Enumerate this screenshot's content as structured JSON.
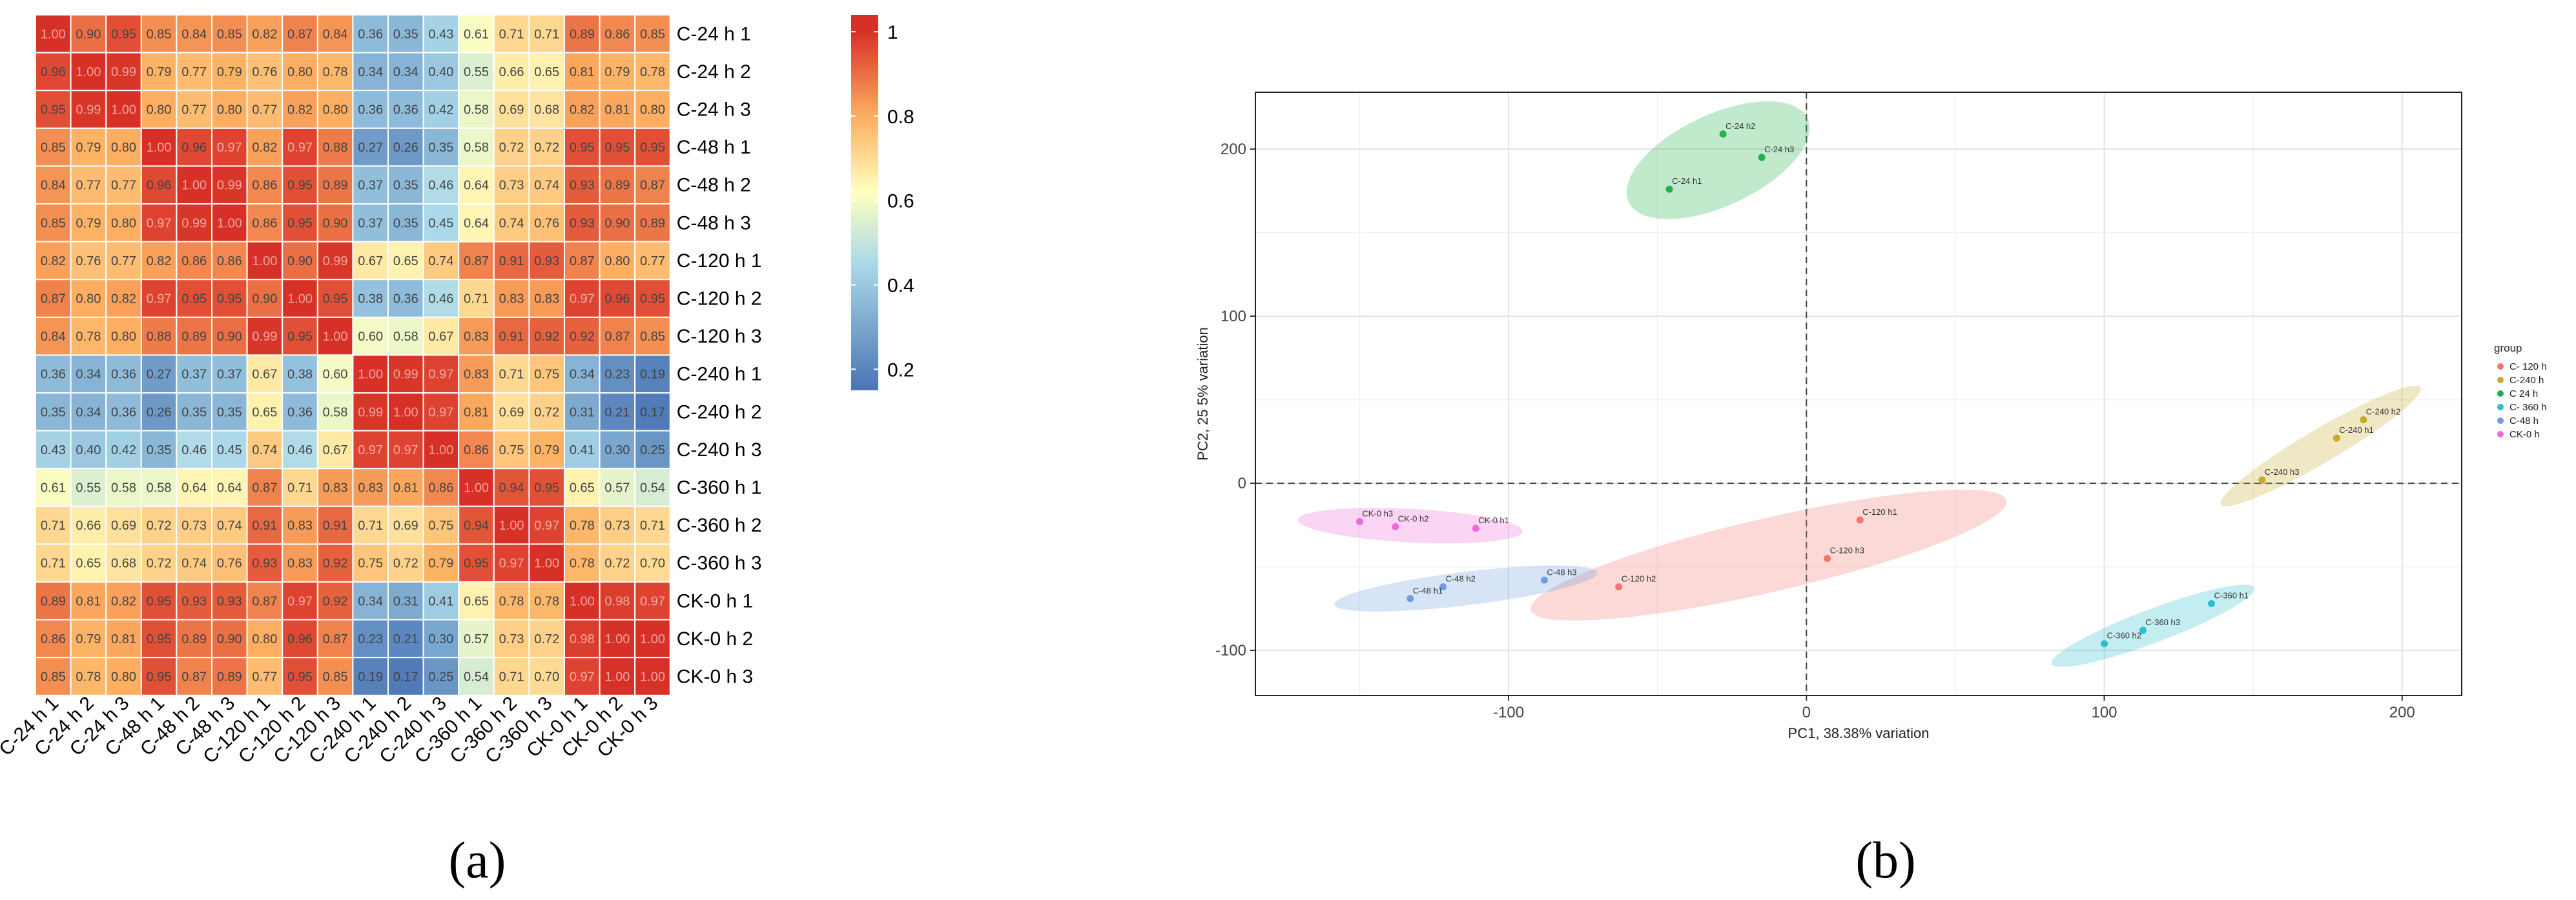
{
  "chart_data": [
    {
      "type": "heatmap",
      "panel_label": "(a)",
      "rows": [
        "C-24 h 1",
        "C-24 h 2",
        "C-24 h 3",
        "C-48 h 1",
        "C-48 h 2",
        "C-48 h 3",
        "C-120 h 1",
        "C-120 h 2",
        "C-120 h 3",
        "C-240 h 1",
        "C-240 h 2",
        "C-240 h 3",
        "C-360 h 1",
        "C-360 h 2",
        "C-360 h 3",
        "CK-0 h 1",
        "CK-0 h 2",
        "CK-0 h 3"
      ],
      "columns": [
        "C-24 h 1",
        "C-24 h 2",
        "C-24 h 3",
        "C-48 h 1",
        "C-48 h 2",
        "C-48 h 3",
        "C-120 h 1",
        "C-120 h 2",
        "C-120 h 3",
        "C-240 h 1",
        "C-240 h 2",
        "C-240 h 3",
        "C-360 h 1",
        "C-360 h 2",
        "C-360 h 3",
        "CK-0 h 1",
        "CK-0 h 2",
        "CK-0 h 3"
      ],
      "values": [
        [
          1.0,
          0.9,
          0.95,
          0.85,
          0.84,
          0.85,
          0.82,
          0.87,
          0.84,
          0.36,
          0.35,
          0.43,
          0.61,
          0.71,
          0.71,
          0.89,
          0.86,
          0.85
        ],
        [
          0.96,
          1.0,
          0.99,
          0.79,
          0.77,
          0.79,
          0.76,
          0.8,
          0.78,
          0.34,
          0.34,
          0.4,
          0.55,
          0.66,
          0.65,
          0.81,
          0.79,
          0.78
        ],
        [
          0.95,
          0.99,
          1.0,
          0.8,
          0.77,
          0.8,
          0.77,
          0.82,
          0.8,
          0.36,
          0.36,
          0.42,
          0.58,
          0.69,
          0.68,
          0.82,
          0.81,
          0.8
        ],
        [
          0.85,
          0.79,
          0.8,
          1.0,
          0.96,
          0.97,
          0.82,
          0.97,
          0.88,
          0.27,
          0.26,
          0.35,
          0.58,
          0.72,
          0.72,
          0.95,
          0.95,
          0.95
        ],
        [
          0.84,
          0.77,
          0.77,
          0.96,
          1.0,
          0.99,
          0.86,
          0.95,
          0.89,
          0.37,
          0.35,
          0.46,
          0.64,
          0.73,
          0.74,
          0.93,
          0.89,
          0.87
        ],
        [
          0.85,
          0.79,
          0.8,
          0.97,
          0.99,
          1.0,
          0.86,
          0.95,
          0.9,
          0.37,
          0.35,
          0.45,
          0.64,
          0.74,
          0.76,
          0.93,
          0.9,
          0.89
        ],
        [
          0.82,
          0.76,
          0.77,
          0.82,
          0.86,
          0.86,
          1.0,
          0.9,
          0.99,
          0.67,
          0.65,
          0.74,
          0.87,
          0.91,
          0.93,
          0.87,
          0.8,
          0.77
        ],
        [
          0.87,
          0.8,
          0.82,
          0.97,
          0.95,
          0.95,
          0.9,
          1.0,
          0.95,
          0.38,
          0.36,
          0.46,
          0.71,
          0.83,
          0.83,
          0.97,
          0.96,
          0.95
        ],
        [
          0.84,
          0.78,
          0.8,
          0.88,
          0.89,
          0.9,
          0.99,
          0.95,
          1.0,
          0.6,
          0.58,
          0.67,
          0.83,
          0.91,
          0.92,
          0.92,
          0.87,
          0.85
        ],
        [
          0.36,
          0.34,
          0.36,
          0.27,
          0.37,
          0.37,
          0.67,
          0.38,
          0.6,
          1.0,
          0.99,
          0.97,
          0.83,
          0.71,
          0.75,
          0.34,
          0.23,
          0.19
        ],
        [
          0.35,
          0.34,
          0.36,
          0.26,
          0.35,
          0.35,
          0.65,
          0.36,
          0.58,
          0.99,
          1.0,
          0.97,
          0.81,
          0.69,
          0.72,
          0.31,
          0.21,
          0.17
        ],
        [
          0.43,
          0.4,
          0.42,
          0.35,
          0.46,
          0.45,
          0.74,
          0.46,
          0.67,
          0.97,
          0.97,
          1.0,
          0.86,
          0.75,
          0.79,
          0.41,
          0.3,
          0.25
        ],
        [
          0.61,
          0.55,
          0.58,
          0.58,
          0.64,
          0.64,
          0.87,
          0.71,
          0.83,
          0.83,
          0.81,
          0.86,
          1.0,
          0.94,
          0.95,
          0.65,
          0.57,
          0.54
        ],
        [
          0.71,
          0.66,
          0.69,
          0.72,
          0.73,
          0.74,
          0.91,
          0.83,
          0.91,
          0.71,
          0.69,
          0.75,
          0.94,
          1.0,
          0.97,
          0.78,
          0.73,
          0.71
        ],
        [
          0.71,
          0.65,
          0.68,
          0.72,
          0.74,
          0.76,
          0.93,
          0.83,
          0.92,
          0.75,
          0.72,
          0.79,
          0.95,
          0.97,
          1.0,
          0.78,
          0.72,
          0.7
        ],
        [
          0.89,
          0.81,
          0.82,
          0.95,
          0.93,
          0.93,
          0.87,
          0.97,
          0.92,
          0.34,
          0.31,
          0.41,
          0.65,
          0.78,
          0.78,
          1.0,
          0.98,
          0.97
        ],
        [
          0.86,
          0.79,
          0.81,
          0.95,
          0.89,
          0.9,
          0.8,
          0.96,
          0.87,
          0.23,
          0.21,
          0.3,
          0.57,
          0.73,
          0.72,
          0.98,
          1.0,
          1.0
        ],
        [
          0.85,
          0.78,
          0.8,
          0.95,
          0.87,
          0.89,
          0.77,
          0.95,
          0.85,
          0.19,
          0.17,
          0.25,
          0.54,
          0.71,
          0.7,
          0.97,
          1.0,
          1.0
        ]
      ],
      "colorbar": {
        "min": 0.15,
        "max": 1.04,
        "ticks": [
          "0.2",
          "0.4",
          "0.6",
          "0.8",
          "1"
        ],
        "tick_values": [
          0.2,
          0.4,
          0.6,
          0.8,
          1.0
        ]
      },
      "colors": {
        "low": "#4a74b4",
        "mid_low": "#abd9e9",
        "mid": "#ffffbf",
        "mid_high": "#fdae61",
        "high": "#d73027"
      }
    },
    {
      "type": "scatter",
      "panel_label": "(b)",
      "xlabel": "PC1, 38.38% variation",
      "ylabel": "PC2, 25  5% variation",
      "xlim": [
        -185,
        220
      ],
      "ylim": [
        -127,
        234
      ],
      "xticks": [
        -100,
        0,
        100,
        200
      ],
      "yticks": [
        -100,
        0,
        100,
        200
      ],
      "grid": true,
      "legend": {
        "title": "group",
        "position": "right"
      },
      "series": [
        {
          "name": "C- 120 h",
          "color": "#f0766c",
          "points": [
            {
              "label": "C-120 h1",
              "x": 18,
              "y": -22
            },
            {
              "label": "C-120 h3",
              "x": 7,
              "y": -45
            },
            {
              "label": "C-120 h2",
              "x": -63,
              "y": -62
            }
          ]
        },
        {
          "name": "C-240 h",
          "color": "#c9a82c",
          "points": [
            {
              "label": "C-240 h2",
              "x": 187,
              "y": 38
            },
            {
              "label": "C-240 h1",
              "x": 178,
              "y": 27
            },
            {
              "label": "C-240 h3",
              "x": 153,
              "y": 2
            }
          ]
        },
        {
          "name": "C  24 h",
          "color": "#22b24c",
          "points": [
            {
              "label": "C-24 h2",
              "x": -28,
              "y": 209
            },
            {
              "label": "C-24 h3",
              "x": -15,
              "y": 195
            },
            {
              "label": "C-24 h1",
              "x": -46,
              "y": 176
            }
          ]
        },
        {
          "name": "C- 360 h",
          "color": "#2cc0cf",
          "points": [
            {
              "label": "C-360 h1",
              "x": 136,
              "y": -72
            },
            {
              "label": "C-360 h3",
              "x": 113,
              "y": -88
            },
            {
              "label": "C-360 h2",
              "x": 100,
              "y": -96
            }
          ]
        },
        {
          "name": "C-48 h",
          "color": "#6f9de0",
          "points": [
            {
              "label": "C-48 h2",
              "x": -122,
              "y": -62
            },
            {
              "label": "C-48 h3",
              "x": -88,
              "y": -58
            },
            {
              "label": "C-48 h1",
              "x": -133,
              "y": -69
            }
          ]
        },
        {
          "name": "CK-0 h",
          "color": "#ef69d8",
          "points": [
            {
              "label": "CK-0 h3",
              "x": -150,
              "y": -23
            },
            {
              "label": "CK-0 h2",
              "x": -138,
              "y": -26
            },
            {
              "label": "CK-0 h1",
              "x": -111,
              "y": -27
            }
          ]
        }
      ]
    }
  ]
}
